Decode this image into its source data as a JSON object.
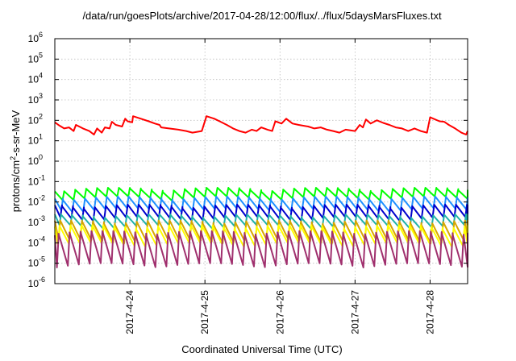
{
  "chart_data": {
    "type": "line",
    "title": "/data/run/goesPlots/archive/2017-04-28/12:00/flux/../flux/5daysMarsFluxes.txt",
    "xlabel": "Coordinated Universal Time (UTC)",
    "ylabel_parts": [
      "protons/cm",
      "2",
      "-s-sr-MeV"
    ],
    "x_range_days": [
      "2017-04-23 00:00",
      "2017-04-28 12:00"
    ],
    "x_ticks": [
      "2017-4-24",
      "2017-4-25",
      "2017-4-26",
      "2017-4-27",
      "2017-4-28"
    ],
    "y_scale": "log",
    "ylim": [
      1e-06,
      1000000.0
    ],
    "y_tick_exponents": [
      "-6",
      "-5",
      "-4",
      "-3",
      "-2",
      "-1",
      "0",
      "1",
      "2",
      "3",
      "4",
      "5",
      "6"
    ],
    "grid": true,
    "legend": "none",
    "series": [
      {
        "color": "#ff0000",
        "points": [
          [
            "2017-04-23 00:00",
            80
          ],
          [
            "2017-04-23 01:30",
            55
          ],
          [
            "2017-04-23 03:00",
            40
          ],
          [
            "2017-04-23 04:30",
            45
          ],
          [
            "2017-04-23 06:00",
            30
          ],
          [
            "2017-04-23 06:45",
            60
          ],
          [
            "2017-04-23 09:00",
            40
          ],
          [
            "2017-04-23 11:00",
            30
          ],
          [
            "2017-04-23 12:30",
            20
          ],
          [
            "2017-04-23 13:30",
            40
          ],
          [
            "2017-04-23 15:00",
            25
          ],
          [
            "2017-04-23 16:00",
            45
          ],
          [
            "2017-04-23 17:30",
            40
          ],
          [
            "2017-04-23 18:15",
            85
          ],
          [
            "2017-04-23 19:30",
            60
          ],
          [
            "2017-04-23 21:30",
            50
          ],
          [
            "2017-04-23 22:30",
            120
          ],
          [
            "2017-04-23 23:15",
            90
          ],
          [
            "2017-04-24 00:45",
            80
          ],
          [
            "2017-04-24 01:00",
            160
          ],
          [
            "2017-04-24 03:30",
            120
          ],
          [
            "2017-04-24 06:00",
            90
          ],
          [
            "2017-04-24 08:00",
            70
          ],
          [
            "2017-04-24 09:30",
            60
          ],
          [
            "2017-04-24 10:00",
            45
          ],
          [
            "2017-04-24 12:30",
            40
          ],
          [
            "2017-04-24 15:30",
            35
          ],
          [
            "2017-04-24 18:00",
            30
          ],
          [
            "2017-04-24 20:00",
            25
          ],
          [
            "2017-04-24 23:00",
            30
          ],
          [
            "2017-04-25 00:30",
            160
          ],
          [
            "2017-04-25 03:00",
            120
          ],
          [
            "2017-04-25 05:00",
            85
          ],
          [
            "2017-04-25 07:00",
            60
          ],
          [
            "2017-04-25 09:00",
            40
          ],
          [
            "2017-04-25 11:00",
            30
          ],
          [
            "2017-04-25 13:00",
            25
          ],
          [
            "2017-04-25 15:00",
            35
          ],
          [
            "2017-04-25 16:30",
            30
          ],
          [
            "2017-04-25 18:00",
            45
          ],
          [
            "2017-04-25 20:00",
            35
          ],
          [
            "2017-04-25 21:30",
            30
          ],
          [
            "2017-04-25 22:30",
            90
          ],
          [
            "2017-04-26 00:30",
            70
          ],
          [
            "2017-04-26 02:00",
            120
          ],
          [
            "2017-04-26 04:00",
            70
          ],
          [
            "2017-04-26 06:00",
            60
          ],
          [
            "2017-04-26 09:00",
            50
          ],
          [
            "2017-04-26 11:00",
            40
          ],
          [
            "2017-04-26 13:00",
            45
          ],
          [
            "2017-04-26 15:00",
            35
          ],
          [
            "2017-04-26 17:00",
            30
          ],
          [
            "2017-04-26 19:00",
            25
          ],
          [
            "2017-04-26 21:00",
            35
          ],
          [
            "2017-04-27 00:00",
            30
          ],
          [
            "2017-04-27 01:30",
            60
          ],
          [
            "2017-04-27 02:30",
            45
          ],
          [
            "2017-04-27 03:30",
            110
          ],
          [
            "2017-04-27 05:00",
            70
          ],
          [
            "2017-04-27 07:00",
            100
          ],
          [
            "2017-04-27 09:00",
            75
          ],
          [
            "2017-04-27 11:00",
            60
          ],
          [
            "2017-04-27 13:00",
            45
          ],
          [
            "2017-04-27 15:00",
            40
          ],
          [
            "2017-04-27 17:00",
            30
          ],
          [
            "2017-04-27 19:00",
            40
          ],
          [
            "2017-04-27 21:00",
            30
          ],
          [
            "2017-04-27 23:00",
            25
          ],
          [
            "2017-04-28 00:00",
            140
          ],
          [
            "2017-04-28 03:00",
            90
          ],
          [
            "2017-04-28 04:30",
            85
          ],
          [
            "2017-04-28 06:00",
            60
          ],
          [
            "2017-04-28 08:00",
            40
          ],
          [
            "2017-04-28 10:00",
            25
          ],
          [
            "2017-04-28 11:30",
            20
          ],
          [
            "2017-04-28 12:00",
            30
          ]
        ]
      },
      {
        "color": "#00ff00",
        "base": 0.015,
        "amp": 0.04,
        "period_h": 3.5,
        "phase_h": 0.5
      },
      {
        "color": "#1e90ff",
        "base": 0.004,
        "amp": 0.015,
        "period_h": 3.5,
        "phase_h": 0.9
      },
      {
        "color": "#0000cd",
        "base": 0.0015,
        "amp": 0.006,
        "period_h": 3.5,
        "phase_h": 1.2
      },
      {
        "color": "#20b2aa",
        "base": 0.0006,
        "amp": 0.002,
        "period_h": 3.5,
        "phase_h": 1.5
      },
      {
        "color": "#d8a600",
        "base": 0.00012,
        "amp": 0.001,
        "period_h": 3.5,
        "phase_h": 1.8
      },
      {
        "color": "#ffff00",
        "base": 8e-05,
        "amp": 0.0006,
        "period_h": 3.5,
        "phase_h": 2.0
      },
      {
        "color": "#a0306e",
        "base": 8e-06,
        "amp": 0.0003,
        "period_h": 3.5,
        "phase_h": 2.3
      }
    ]
  }
}
